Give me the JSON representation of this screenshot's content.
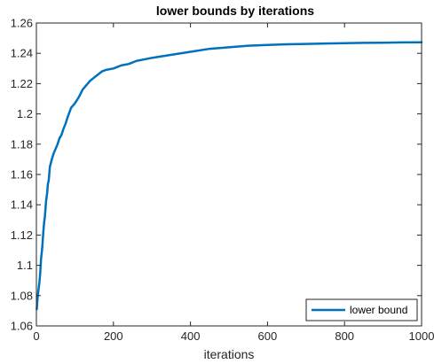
{
  "chart_data": {
    "type": "line",
    "title": "lower bounds by iterations",
    "xlabel": "iterations",
    "ylabel": "",
    "xlim": [
      0,
      1000
    ],
    "ylim": [
      1.06,
      1.26
    ],
    "xticks": [
      0,
      200,
      400,
      600,
      800,
      1000
    ],
    "xtick_labels": [
      "0",
      "200",
      "400",
      "600",
      "800",
      "1000"
    ],
    "yticks": [
      1.06,
      1.08,
      1.1,
      1.12,
      1.14,
      1.16,
      1.18,
      1.2,
      1.22,
      1.24,
      1.26
    ],
    "ytick_labels": [
      "1.06",
      "1.08",
      "1.1",
      "1.12",
      "1.14",
      "1.16",
      "1.18",
      "1.2",
      "1.22",
      "1.24",
      "1.26"
    ],
    "grid": false,
    "legend_position": "bottom-right",
    "series": [
      {
        "name": "lower bound",
        "color": "#0072BD",
        "x": [
          1,
          3,
          5,
          8,
          10,
          12,
          15,
          18,
          20,
          22,
          25,
          28,
          30,
          32,
          35,
          40,
          45,
          50,
          55,
          60,
          65,
          70,
          75,
          80,
          90,
          100,
          110,
          120,
          130,
          140,
          150,
          160,
          170,
          180,
          200,
          220,
          240,
          260,
          280,
          300,
          350,
          400,
          450,
          500,
          550,
          600,
          650,
          700,
          750,
          800,
          850,
          900,
          950,
          1000
        ],
        "y": [
          1.071,
          1.078,
          1.083,
          1.089,
          1.095,
          1.104,
          1.111,
          1.122,
          1.128,
          1.132,
          1.142,
          1.148,
          1.154,
          1.156,
          1.165,
          1.17,
          1.174,
          1.177,
          1.18,
          1.184,
          1.186,
          1.19,
          1.193,
          1.197,
          1.204,
          1.207,
          1.211,
          1.216,
          1.219,
          1.222,
          1.224,
          1.226,
          1.228,
          1.229,
          1.23,
          1.232,
          1.233,
          1.235,
          1.236,
          1.237,
          1.239,
          1.241,
          1.243,
          1.244,
          1.245,
          1.2455,
          1.246,
          1.2462,
          1.2465,
          1.2467,
          1.2469,
          1.247,
          1.2472,
          1.2473
        ]
      }
    ]
  }
}
